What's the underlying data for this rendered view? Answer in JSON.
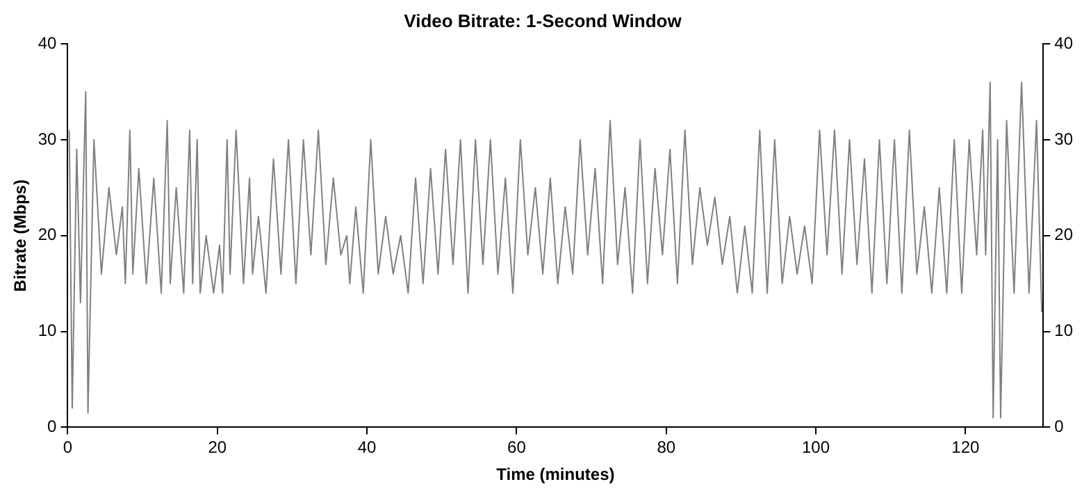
{
  "chart_data": {
    "type": "line",
    "title": "Video Bitrate: 1-Second Window",
    "xlabel": "Time (minutes)",
    "ylabel": "Bitrate (Mbps)",
    "series": [
      {
        "color": "#808080",
        "x": [
          0.2,
          0.6,
          1.2,
          1.7,
          2.4,
          2.7,
          3.5,
          4.5,
          5.5,
          6.5,
          7.3,
          7.7,
          8.3,
          8.7,
          9.5,
          10.5,
          11.5,
          12.5,
          13.3,
          13.7,
          14.5,
          15.5,
          16.3,
          16.7,
          17.3,
          17.7,
          18.5,
          19.5,
          20.3,
          20.7,
          21.3,
          21.7,
          22.5,
          23.5,
          24.3,
          24.7,
          25.5,
          26.5,
          27.5,
          28.5,
          29.5,
          30.5,
          31.5,
          32.5,
          33.5,
          34.5,
          35.5,
          36.5,
          37.3,
          37.7,
          38.5,
          39.5,
          40.5,
          41.5,
          42.5,
          43.5,
          44.5,
          45.5,
          46.5,
          47.5,
          48.5,
          49.5,
          50.5,
          51.5,
          52.5,
          53.5,
          54.5,
          55.5,
          56.5,
          57.5,
          58.5,
          59.5,
          60.5,
          61.5,
          62.5,
          63.5,
          64.5,
          65.5,
          66.5,
          67.5,
          68.5,
          69.5,
          70.5,
          71.5,
          72.5,
          73.5,
          74.5,
          75.5,
          76.5,
          77.5,
          78.5,
          79.5,
          80.5,
          81.5,
          82.5,
          83.5,
          84.5,
          85.5,
          86.5,
          87.5,
          88.5,
          89.5,
          90.5,
          91.5,
          92.5,
          93.5,
          94.5,
          95.5,
          96.5,
          97.5,
          98.5,
          99.5,
          100.5,
          101.5,
          102.5,
          103.5,
          104.5,
          105.5,
          106.5,
          107.5,
          108.5,
          109.5,
          110.5,
          111.5,
          112.5,
          113.5,
          114.5,
          115.5,
          116.5,
          117.5,
          118.5,
          119.5,
          120.5,
          121.5,
          122.3,
          122.7,
          123.3,
          123.7,
          124.3,
          124.7,
          125.5,
          126.5,
          127.5,
          128.5,
          129.5,
          130.2
        ],
        "values": [
          31,
          2,
          29,
          13,
          35,
          1.5,
          30,
          16,
          25,
          18,
          23,
          15,
          31,
          16,
          27,
          15,
          26,
          14,
          32,
          15,
          25,
          14,
          31,
          15,
          30,
          14,
          20,
          14,
          19,
          14,
          30,
          16,
          31,
          15,
          26,
          16,
          22,
          14,
          28,
          16,
          30,
          15,
          30,
          18,
          31,
          17,
          26,
          18,
          20,
          15,
          23,
          14,
          30,
          16,
          22,
          16,
          20,
          14,
          26,
          15,
          27,
          16,
          29,
          17,
          30,
          14,
          30,
          17,
          30,
          16,
          26,
          14,
          30,
          18,
          25,
          16,
          26,
          15,
          23,
          16,
          30,
          18,
          27,
          15,
          32,
          17,
          25,
          14,
          30,
          15,
          27,
          18,
          29,
          15,
          31,
          17,
          25,
          19,
          24,
          17,
          22,
          14,
          21,
          14,
          31,
          14,
          30,
          15,
          22,
          16,
          21,
          15,
          31,
          18,
          31,
          16,
          30,
          17,
          28,
          14,
          30,
          15,
          30,
          14,
          31,
          16,
          23,
          14,
          25,
          14,
          30,
          14,
          30,
          18,
          31,
          18,
          36,
          1,
          30,
          1,
          32,
          14,
          36,
          14,
          32,
          12
        ]
      }
    ],
    "xlim": [
      0,
      130.4
    ],
    "xticks": [
      0,
      20,
      40,
      60,
      80,
      100,
      120
    ],
    "ylim": [
      0,
      40
    ],
    "yticks": [
      0,
      10,
      20,
      30,
      40
    ],
    "y2lim": [
      0,
      40
    ],
    "y2ticks": [
      0,
      10,
      20,
      30,
      40
    ],
    "grid": false,
    "legend": false,
    "marker": "none",
    "line_style": "solid"
  }
}
